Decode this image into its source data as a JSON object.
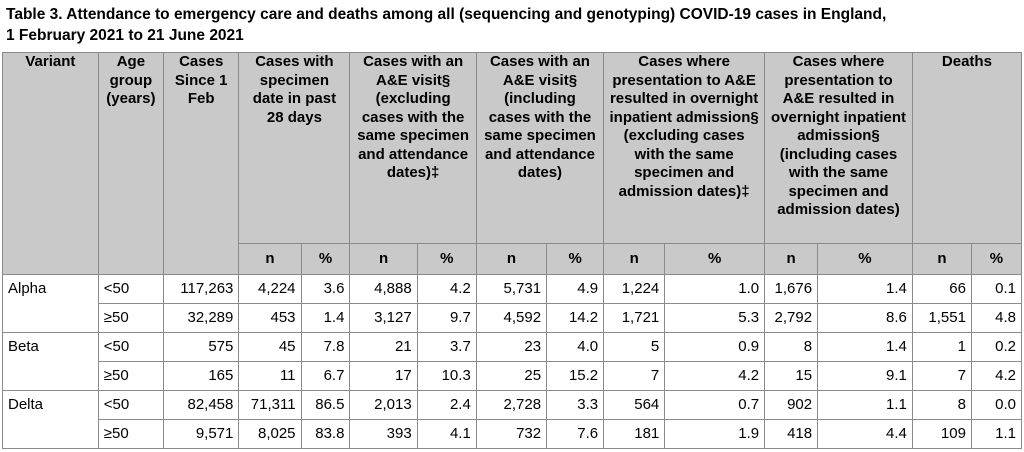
{
  "title_line1": "Table 3. Attendance to emergency care and deaths among all (sequencing and genotyping) COVID-19 cases in England,",
  "title_line2": "1 February 2021 to 21 June 2021",
  "headers": {
    "variant": "Variant",
    "age_group": "Age group (years)",
    "cases_since": "Cases Since 1 Feb",
    "past28": "Cases with specimen date in past 28 days",
    "ae_excl": "Cases with an A&E visit§ (excluding cases with the same specimen and attendance dates)‡",
    "ae_incl": "Cases with an A&E visit§ (including cases with the same specimen and attendance dates)",
    "adm_excl": "Cases where presentation to A&E resulted in overnight inpatient admission§ (excluding cases with the same specimen and admission dates)‡",
    "adm_incl": "Cases where presentation to A&E resulted in overnight inpatient admission§ (including cases with the same specimen and admission dates)",
    "deaths": "Deaths",
    "n": "n",
    "pct": "%"
  },
  "variants": [
    {
      "name": "Alpha",
      "rows": [
        {
          "age": "<50",
          "cases": "117,263",
          "p28_n": "4,224",
          "p28_pct": "3.6",
          "aex_n": "4,888",
          "aex_pct": "4.2",
          "ain_n": "5,731",
          "ain_pct": "4.9",
          "adx_n": "1,224",
          "adx_pct": "1.0",
          "adi_n": "1,676",
          "adi_pct": "1.4",
          "d_n": "66",
          "d_pct": "0.1"
        },
        {
          "age": "≥50",
          "cases": "32,289",
          "p28_n": "453",
          "p28_pct": "1.4",
          "aex_n": "3,127",
          "aex_pct": "9.7",
          "ain_n": "4,592",
          "ain_pct": "14.2",
          "adx_n": "1,721",
          "adx_pct": "5.3",
          "adi_n": "2,792",
          "adi_pct": "8.6",
          "d_n": "1,551",
          "d_pct": "4.8"
        }
      ]
    },
    {
      "name": "Beta",
      "rows": [
        {
          "age": "<50",
          "cases": "575",
          "p28_n": "45",
          "p28_pct": "7.8",
          "aex_n": "21",
          "aex_pct": "3.7",
          "ain_n": "23",
          "ain_pct": "4.0",
          "adx_n": "5",
          "adx_pct": "0.9",
          "adi_n": "8",
          "adi_pct": "1.4",
          "d_n": "1",
          "d_pct": "0.2"
        },
        {
          "age": "≥50",
          "cases": "165",
          "p28_n": "11",
          "p28_pct": "6.7",
          "aex_n": "17",
          "aex_pct": "10.3",
          "ain_n": "25",
          "ain_pct": "15.2",
          "adx_n": "7",
          "adx_pct": "4.2",
          "adi_n": "15",
          "adi_pct": "9.1",
          "d_n": "7",
          "d_pct": "4.2"
        }
      ]
    },
    {
      "name": "Delta",
      "rows": [
        {
          "age": "<50",
          "cases": "82,458",
          "p28_n": "71,311",
          "p28_pct": "86.5",
          "aex_n": "2,013",
          "aex_pct": "2.4",
          "ain_n": "2,728",
          "ain_pct": "3.3",
          "adx_n": "564",
          "adx_pct": "0.7",
          "adi_n": "902",
          "adi_pct": "1.1",
          "d_n": "8",
          "d_pct": "0.0"
        },
        {
          "age": "≥50",
          "cases": "9,571",
          "p28_n": "8,025",
          "p28_pct": "83.8",
          "aex_n": "393",
          "aex_pct": "4.1",
          "ain_n": "732",
          "ain_pct": "7.6",
          "adx_n": "181",
          "adx_pct": "1.9",
          "adi_n": "418",
          "adi_pct": "4.4",
          "d_n": "109",
          "d_pct": "1.1"
        }
      ]
    }
  ]
}
